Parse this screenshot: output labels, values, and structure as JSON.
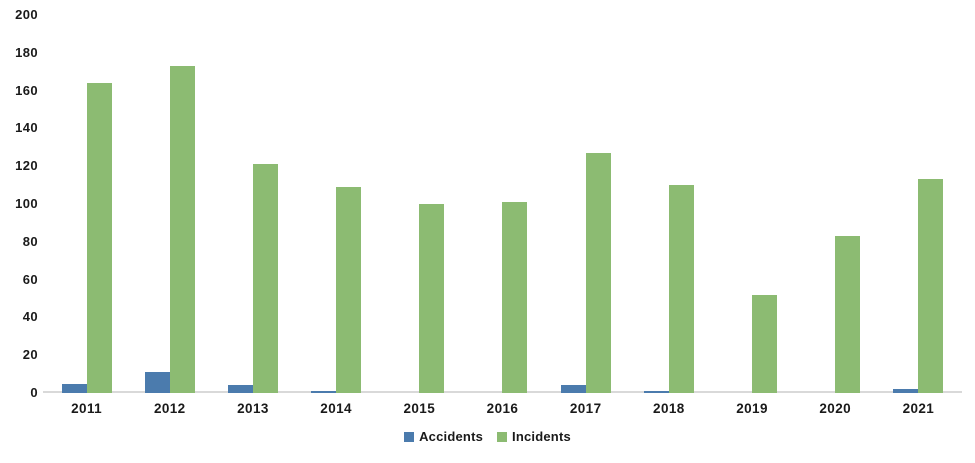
{
  "chart_data": {
    "type": "bar",
    "title": "",
    "xlabel": "",
    "ylabel": "",
    "categories": [
      "2011",
      "2012",
      "2013",
      "2014",
      "2015",
      "2016",
      "2017",
      "2018",
      "2019",
      "2020",
      "2021"
    ],
    "series": [
      {
        "name": "Accidents",
        "color": "#4b7bad",
        "values": [
          5,
          11,
          4,
          1,
          0,
          0,
          4,
          1,
          0,
          0,
          2
        ]
      },
      {
        "name": "Incidents",
        "color": "#8cbb72",
        "values": [
          164,
          173,
          121,
          109,
          100,
          101,
          127,
          110,
          52,
          83,
          113
        ]
      }
    ],
    "ylim": [
      0,
      200
    ],
    "yticks": [
      0,
      20,
      40,
      60,
      80,
      100,
      120,
      140,
      160,
      180,
      200
    ],
    "grid": false,
    "legend_position": "bottom-center",
    "colors": {
      "axis_line": "#d9d9d9",
      "label_text": "#1a1a1a",
      "background": "#ffffff"
    }
  }
}
